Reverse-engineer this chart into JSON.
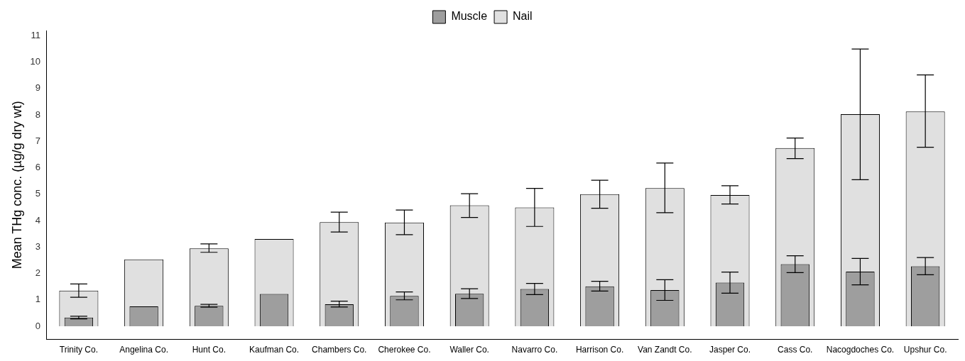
{
  "chart_data": {
    "type": "bar",
    "ylabel": "Mean THg conc. (µg/g dry wt)",
    "categories": [
      "Trinity Co.",
      "Angelina Co.",
      "Hunt Co.",
      "Kaufman Co.",
      "Chambers Co.",
      "Cherokee Co.",
      "Waller Co.",
      "Navarro Co.",
      "Harrison Co.",
      "Van Zandt Co.",
      "Jasper Co.",
      "Cass Co.",
      "Nacogdoches Co.",
      "Upshur Co."
    ],
    "series": [
      {
        "name": "Muscle",
        "color": "#9e9e9e",
        "values": [
          0.33,
          0.75,
          0.77,
          1.22,
          0.83,
          1.15,
          1.23,
          1.41,
          1.51,
          1.37,
          1.65,
          2.35,
          2.07,
          2.27
        ],
        "errors": [
          [
            0.28,
            0.38
          ],
          null,
          [
            0.72,
            0.83
          ],
          null,
          [
            0.73,
            0.95
          ],
          [
            1.0,
            1.3
          ],
          [
            1.05,
            1.42
          ],
          [
            1.2,
            1.62
          ],
          [
            1.33,
            1.7
          ],
          [
            0.98,
            1.76
          ],
          [
            1.25,
            2.05
          ],
          [
            2.03,
            2.67
          ],
          [
            1.57,
            2.57
          ],
          [
            1.95,
            2.6
          ]
        ]
      },
      {
        "name": "Nail",
        "color": "#e0e0e0",
        "values": [
          1.35,
          2.53,
          2.95,
          3.3,
          3.94,
          3.93,
          4.58,
          4.5,
          5.0,
          5.23,
          4.97,
          6.75,
          8.03,
          8.13
        ],
        "errors": [
          [
            1.1,
            1.6
          ],
          null,
          [
            2.8,
            3.12
          ],
          null,
          [
            3.57,
            4.32
          ],
          [
            3.47,
            4.4
          ],
          [
            4.12,
            5.02
          ],
          [
            3.78,
            5.22
          ],
          [
            4.47,
            5.53
          ],
          [
            4.3,
            6.18
          ],
          [
            4.63,
            5.32
          ],
          [
            6.35,
            7.13
          ],
          [
            5.55,
            10.5
          ],
          [
            6.78,
            9.52
          ]
        ]
      }
    ],
    "ylim": [
      -0.5,
      11.2
    ],
    "yticks": [
      0,
      1,
      2,
      3,
      4,
      5,
      6,
      7,
      8,
      9,
      10,
      11
    ],
    "grid": false,
    "legend": "top"
  }
}
